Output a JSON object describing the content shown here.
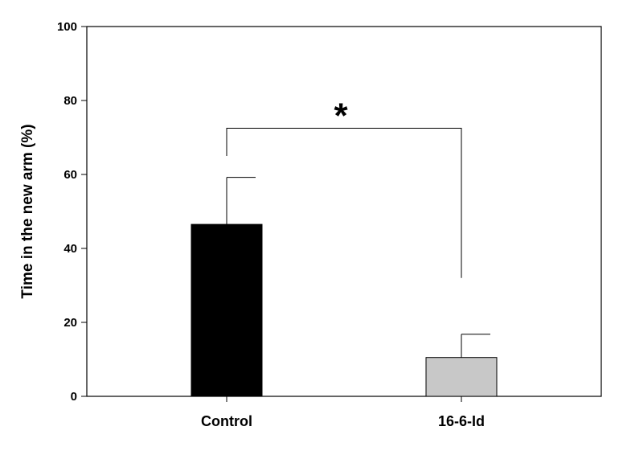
{
  "chart_data": {
    "type": "bar",
    "categories": [
      "Control",
      "16-6-Id"
    ],
    "values": [
      46.5,
      10.5
    ],
    "errors": [
      12.7,
      6.3
    ],
    "colors": [
      "#000000",
      "#c8c8c8"
    ],
    "ylabel": "Time in the new arm (%)",
    "xlabel": "",
    "ylim": [
      0,
      100
    ],
    "yticks": [
      0,
      20,
      40,
      60,
      80,
      100
    ],
    "grid": false,
    "significance": {
      "label": "*",
      "between": [
        0,
        1
      ],
      "bracket_y": 72.5,
      "left_leg_to": 65,
      "right_leg_to": 32
    }
  }
}
